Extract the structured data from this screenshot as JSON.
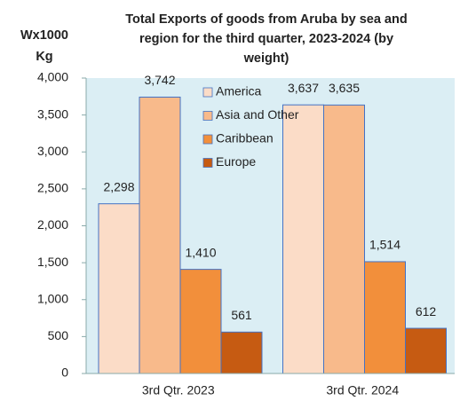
{
  "chart_data": {
    "type": "bar",
    "title": [
      "Total Exports of goods from Aruba by sea and",
      "region for the third quarter, 2023-2024 (by",
      "weight)"
    ],
    "ylabel": [
      "Wx1000",
      "Kg"
    ],
    "categories": [
      "3rd Qtr. 2023",
      "3rd Qtr. 2024"
    ],
    "series": [
      {
        "name": "America",
        "color": "#fbdcc7",
        "values": [
          2298,
          3637
        ],
        "value_labels": [
          "2,298",
          "3,637"
        ]
      },
      {
        "name": "Asia and Other",
        "color": "#f8ba8b",
        "values": [
          3742,
          3635
        ],
        "value_labels": [
          "3,742",
          "3,635"
        ]
      },
      {
        "name": "Caribbean",
        "color": "#f28f3b",
        "values": [
          1410,
          1514
        ],
        "value_labels": [
          "1,410",
          "1,514"
        ]
      },
      {
        "name": "Europe",
        "color": "#c65b12",
        "values": [
          561,
          612
        ],
        "value_labels": [
          "561",
          "612"
        ]
      }
    ],
    "ylim": [
      0,
      4000
    ],
    "yticks": [
      0,
      500,
      {
        "value": 1000,
        "label": "1,000"
      },
      {
        "value": 1500,
        "label": "1,500"
      },
      {
        "value": 2000,
        "label": "2,000"
      },
      {
        "value": 2500,
        "label": "2,500"
      },
      {
        "value": 3000,
        "label": "3,000"
      },
      {
        "value": 3500,
        "label": "3,500"
      },
      {
        "value": 4000,
        "label": "4,000"
      }
    ],
    "legend": "top"
  }
}
